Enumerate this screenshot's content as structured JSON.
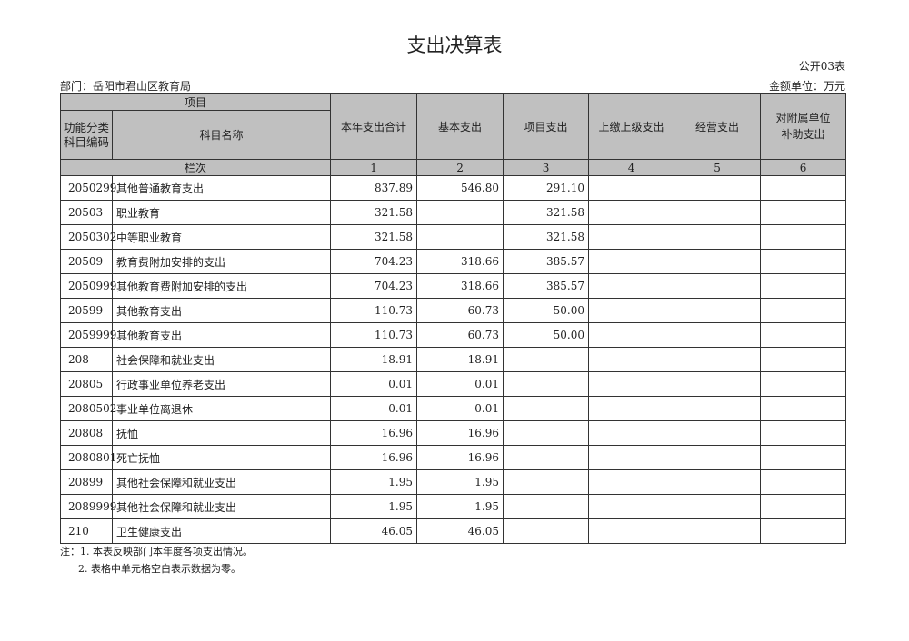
{
  "title": "支出决算表",
  "form_no": "公开03表",
  "department": "部门：岳阳市君山区教育局",
  "unit": "金额单位：万元",
  "headers": {
    "item": "项目",
    "code": "功能分类科目编码",
    "name": "科目名称",
    "col_label": "栏次",
    "cols": [
      "本年支出合计",
      "基本支出",
      "项目支出",
      "上缴上级支出",
      "经营支出",
      "对附属单位补助支出"
    ],
    "col_nums": [
      "1",
      "2",
      "3",
      "4",
      "5",
      "6"
    ]
  },
  "rows": [
    [
      "2050299",
      "其他普通教育支出",
      "837.89",
      "546.80",
      "291.10",
      "",
      "",
      ""
    ],
    [
      "20503",
      "职业教育",
      "321.58",
      "",
      "321.58",
      "",
      "",
      ""
    ],
    [
      "2050302",
      "中等职业教育",
      "321.58",
      "",
      "321.58",
      "",
      "",
      ""
    ],
    [
      "20509",
      "教育费附加安排的支出",
      "704.23",
      "318.66",
      "385.57",
      "",
      "",
      ""
    ],
    [
      "2050999",
      "其他教育费附加安排的支出",
      "704.23",
      "318.66",
      "385.57",
      "",
      "",
      ""
    ],
    [
      "20599",
      "其他教育支出",
      "110.73",
      "60.73",
      "50.00",
      "",
      "",
      ""
    ],
    [
      "2059999",
      "其他教育支出",
      "110.73",
      "60.73",
      "50.00",
      "",
      "",
      ""
    ],
    [
      "208",
      "社会保障和就业支出",
      "18.91",
      "18.91",
      "",
      "",
      "",
      ""
    ],
    [
      "20805",
      "行政事业单位养老支出",
      "0.01",
      "0.01",
      "",
      "",
      "",
      ""
    ],
    [
      "2080502",
      "事业单位离退休",
      "0.01",
      "0.01",
      "",
      "",
      "",
      ""
    ],
    [
      "20808",
      "抚恤",
      "16.96",
      "16.96",
      "",
      "",
      "",
      ""
    ],
    [
      "2080801",
      "死亡抚恤",
      "16.96",
      "16.96",
      "",
      "",
      "",
      ""
    ],
    [
      "20899",
      "其他社会保障和就业支出",
      "1.95",
      "1.95",
      "",
      "",
      "",
      ""
    ],
    [
      "2089999",
      "其他社会保障和就业支出",
      "1.95",
      "1.95",
      "",
      "",
      "",
      ""
    ],
    [
      "210",
      "卫生健康支出",
      "46.05",
      "46.05",
      "",
      "",
      "",
      ""
    ]
  ],
  "notes": [
    "注：1. 本表反映部门本年度各项支出情况。",
    "2. 表格中单元格空白表示数据为零。"
  ]
}
